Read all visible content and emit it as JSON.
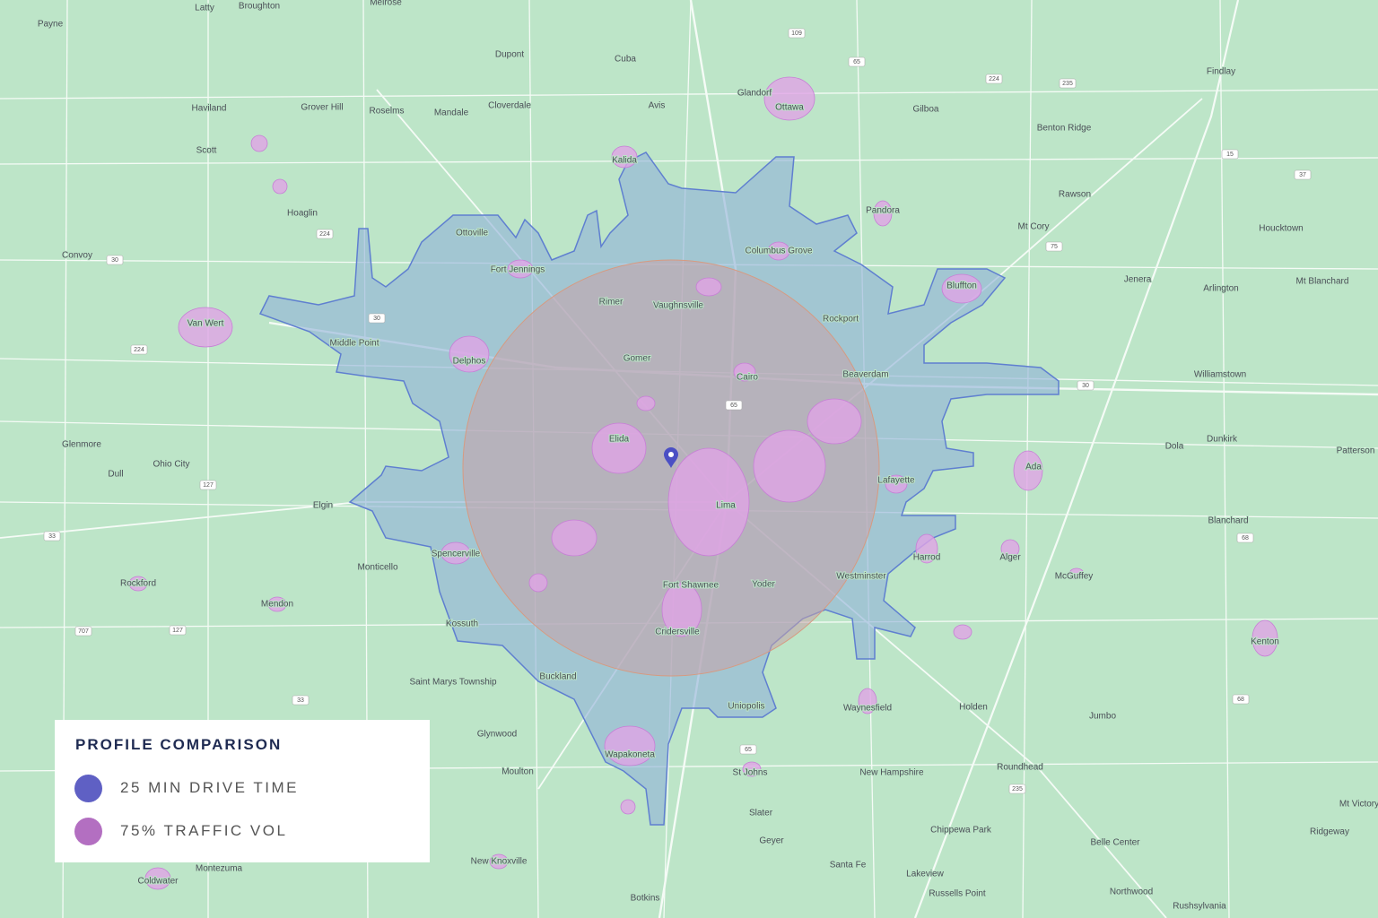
{
  "places": [
    "Latty",
    "Broughton",
    "Melrose",
    "Payne",
    "Dupont",
    "Cuba",
    "Haviland",
    "Grover Hill",
    "Roselms",
    "Mandale",
    "Cloverdale",
    "Avis",
    "Glandorf",
    "Ottawa",
    "Gilboa",
    "Findlay",
    "Benton Ridge",
    "Scott",
    "Kalida",
    "Hoaglin",
    "Pandora",
    "Rawson",
    "Mt Cory",
    "Houcktown",
    "Ottoville",
    "Columbus Grove",
    "Convoy",
    "Fort Jennings",
    "Bluffton",
    "Jenera",
    "Arlington",
    "Mt Blanchard",
    "Rimer",
    "Vaughnsville",
    "Rockport",
    "Van Wert",
    "Middle Point",
    "Delphos",
    "Gomer",
    "Cairo",
    "Beaverdam",
    "Williamstown",
    "Elida",
    "Dola",
    "Dunkirk",
    "Patterson",
    "Glenmore",
    "Ohio City",
    "Dull",
    "Ada",
    "Lafayette",
    "Elgin",
    "Lima",
    "Blanchard",
    "Monticello",
    "Spencerville",
    "Harrod",
    "Alger",
    "McGuffey",
    "Westminster",
    "Rockford",
    "Fort Shawnee",
    "Yoder",
    "Mendon",
    "Kossuth",
    "Cridersville",
    "Kenton",
    "Saint Marys Township",
    "Buckland",
    "Uniopolis",
    "Waynesfield",
    "Holden",
    "Jumbo",
    "Glynwood",
    "Wapakoneta",
    "Moulton",
    "St Johns",
    "New Hampshire",
    "Roundhead",
    "Slater",
    "Geyer",
    "Chippewa Park",
    "Belle Center",
    "Ridgeway",
    "Mt Victory",
    "Santa Fe",
    "New Knoxville",
    "Lakeview",
    "Montezuma",
    "Coldwater",
    "Russells Point",
    "Northwood",
    "Botkins",
    "Rushsylvania"
  ],
  "routes": [
    "109",
    "65",
    "224",
    "235",
    "224",
    "30",
    "224",
    "30",
    "127",
    "65",
    "30",
    "33",
    "707",
    "127",
    "33",
    "65",
    "235",
    "68",
    "68",
    "15",
    "37",
    "75"
  ],
  "legend": {
    "title": "PROFILE COMPARISON",
    "items": [
      "25 MIN DRIVE TIME",
      "75% TRAFFIC VOL"
    ]
  }
}
